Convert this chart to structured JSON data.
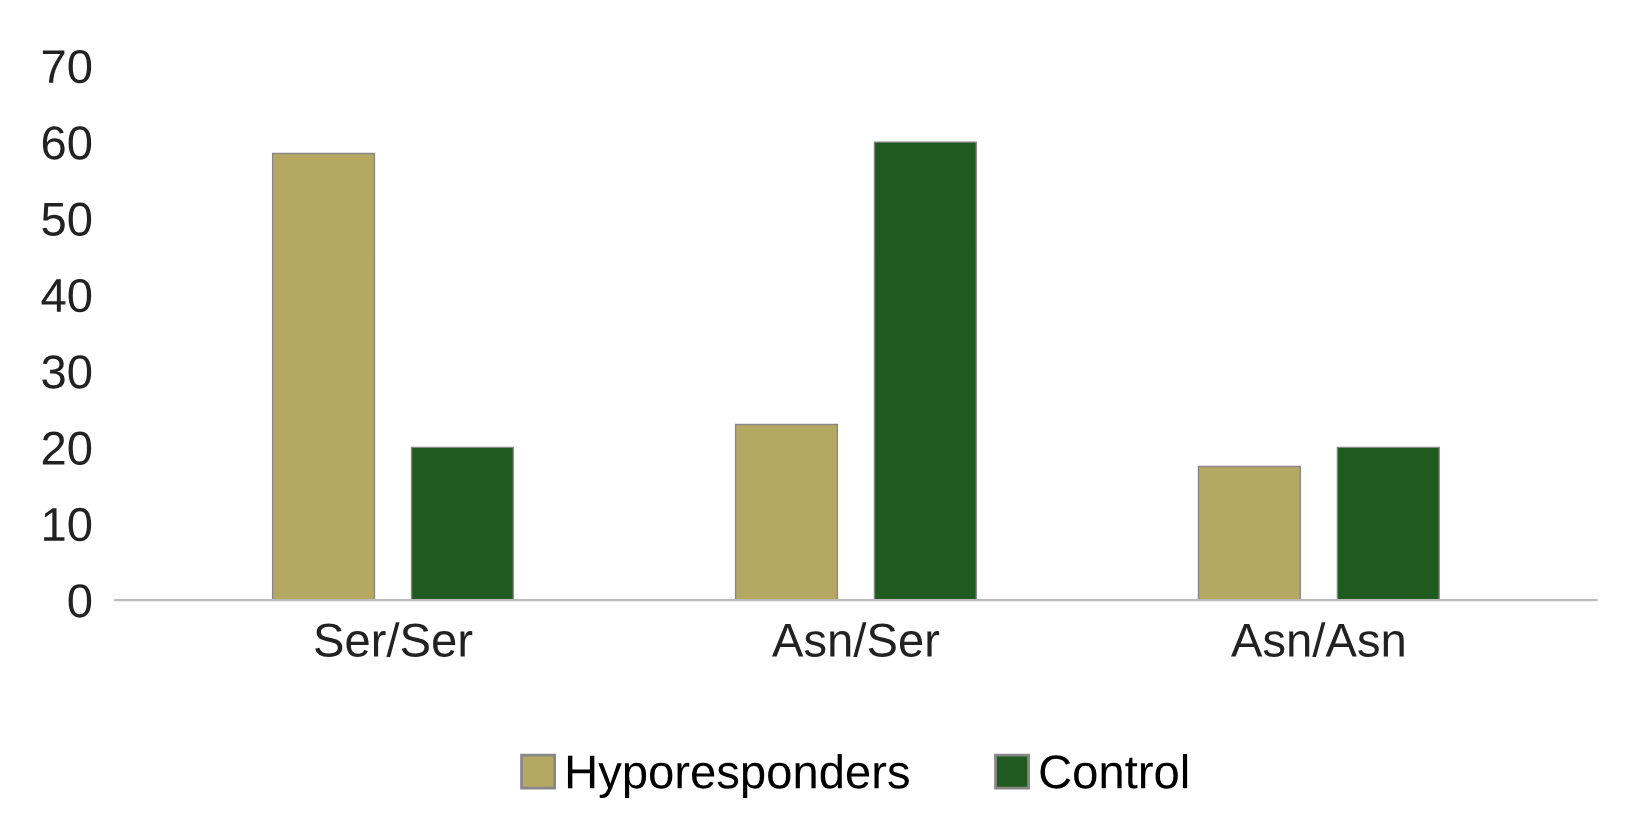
{
  "chart_data": {
    "type": "bar",
    "categories": [
      "Ser/Ser",
      "Asn/Ser",
      "Asn/Asn"
    ],
    "series": [
      {
        "name": "Hyporesponders",
        "color": "#b5a862",
        "values": [
          58.5,
          23,
          17.5
        ]
      },
      {
        "name": "Control",
        "color": "#1f5a1f",
        "values": [
          20,
          60,
          20
        ]
      }
    ],
    "ylim": [
      0,
      70
    ],
    "yticks": [
      0,
      10,
      20,
      30,
      40,
      50,
      60,
      70
    ],
    "grid": false,
    "legend": "bottom"
  }
}
